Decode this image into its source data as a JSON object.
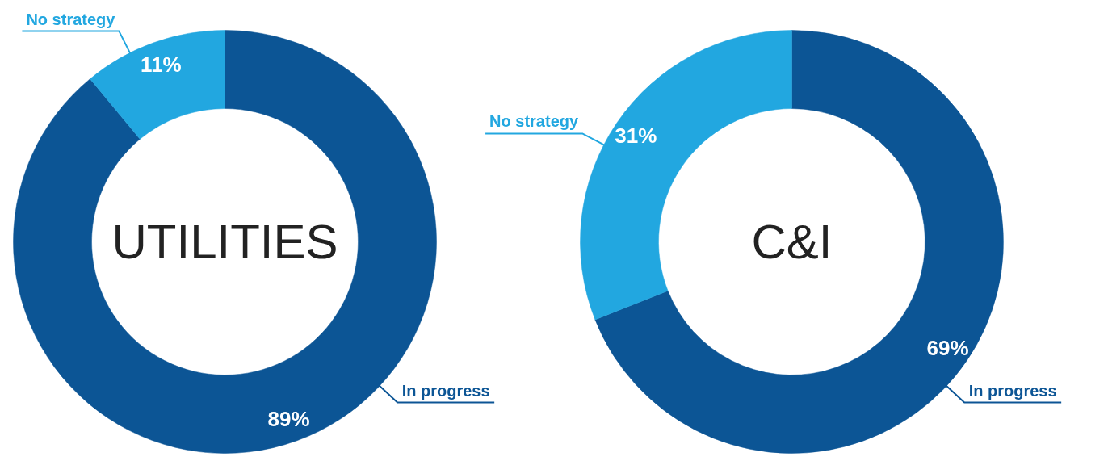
{
  "chart_data": [
    {
      "type": "donut",
      "title": "UTILITIES",
      "categories": [
        "In progress",
        "No strategy"
      ],
      "values": [
        89,
        11
      ],
      "colors": [
        "#0c5595",
        "#22a7e0"
      ],
      "value_labels": [
        "89%",
        "11%"
      ],
      "legend": false
    },
    {
      "type": "donut",
      "title": "C&I",
      "categories": [
        "In progress",
        "No strategy"
      ],
      "values": [
        69,
        31
      ],
      "colors": [
        "#0c5595",
        "#22a7e0"
      ],
      "value_labels": [
        "69%",
        "31%"
      ],
      "legend": false
    }
  ]
}
